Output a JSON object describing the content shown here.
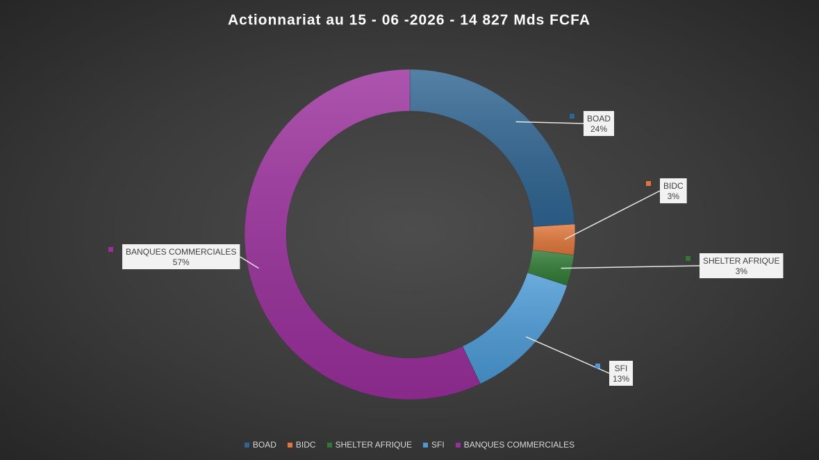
{
  "chart_data": {
    "type": "donut",
    "title": "Actionnariat au 15 - 06 -2026 - 14 827 Mds FCFA",
    "categories": [
      "BOAD",
      "BIDC",
      "SHELTER AFRIQUE",
      "SFI",
      "BANQUES COMMERCIALES"
    ],
    "values": [
      24,
      3,
      3,
      13,
      57
    ],
    "value_labels": [
      "24%",
      "3%",
      "3%",
      "13%",
      "57%"
    ],
    "colors": [
      "#2f6592",
      "#e0763a",
      "#2f7a34",
      "#4b9ad6",
      "#9a2f9c"
    ],
    "legend": "bottom"
  }
}
